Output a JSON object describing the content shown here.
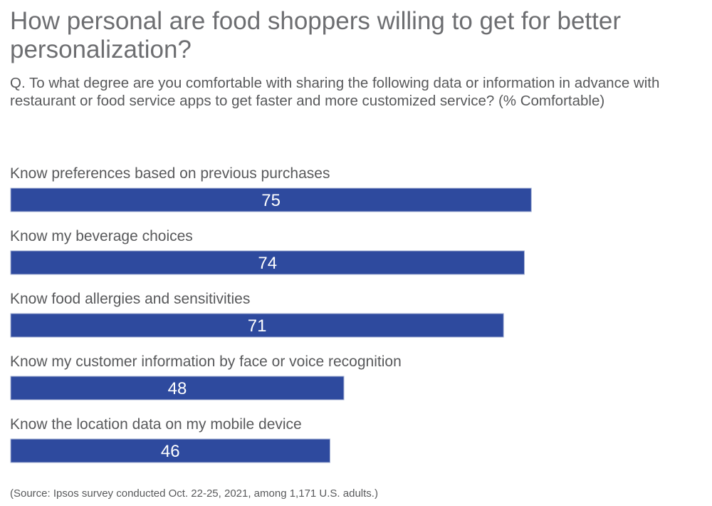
{
  "chart_data": {
    "type": "bar",
    "orientation": "horizontal",
    "title": "How personal are food shoppers willing to get for better personalization?",
    "subtitle": "Q. To what degree are you comfortable with sharing the following data or information in advance with restaurant or food service apps to get faster and more customized service? (% Comfortable)",
    "categories": [
      "Know preferences based on previous purchases",
      "Know my beverage choices",
      "Know food allergies and sensitivities",
      "Know my customer information by face or voice recognition",
      "Know the location data on my mobile device"
    ],
    "values": [
      75,
      74,
      71,
      48,
      46
    ],
    "xlim": [
      0,
      100
    ],
    "grid": false,
    "bar_color": "#2e4a9e",
    "source": "(Source: Ipsos survey conducted Oct. 22-25, 2021, among 1,171 U.S. adults.)"
  }
}
